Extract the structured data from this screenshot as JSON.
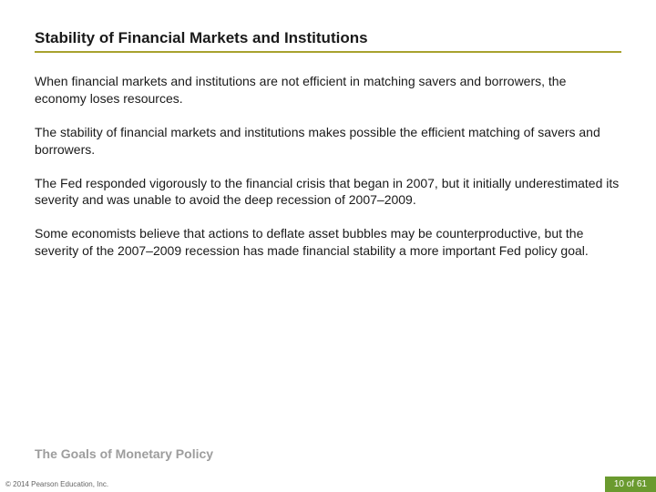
{
  "title": "Stability of Financial Markets and Institutions",
  "paragraphs": [
    "When financial markets and institutions are not efficient in matching savers and borrowers, the economy loses resources.",
    "The stability of financial markets and institutions makes possible the efficient matching of savers and borrowers.",
    "The Fed responded vigorously to the financial crisis that began in 2007, but it initially underestimated its severity and was unable to avoid the deep recession of 2007–2009.",
    "Some economists believe that actions to deflate asset bubbles may be counterproductive, but the severity of the 2007–2009 recession has made financial stability a more important Fed policy goal."
  ],
  "section_label": "The Goals of Monetary Policy",
  "copyright": "© 2014 Pearson Education, Inc.",
  "page_badge": "10 of 61",
  "colors": {
    "title_underline": "#a8a22e",
    "section_label": "#9d9d9d",
    "badge_bg": "#6a9a2f",
    "badge_text": "#ffffff"
  }
}
